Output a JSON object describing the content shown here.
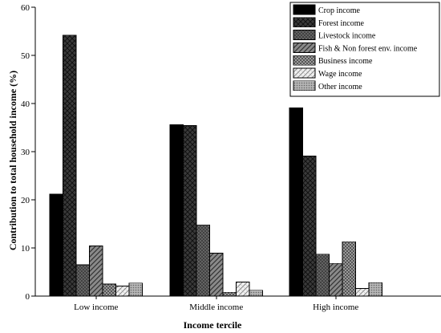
{
  "chart_data": {
    "type": "bar",
    "title": "",
    "xlabel": "Income tercile",
    "ylabel": "Contribution to total household income (%)",
    "ylim": [
      0,
      60
    ],
    "yticks": [
      0,
      10,
      20,
      30,
      40,
      50,
      60
    ],
    "categories": [
      "Low income",
      "Middle income",
      "High income"
    ],
    "legend_position": "top-right",
    "grid": false,
    "series": [
      {
        "name": "Crop income",
        "values": [
          21.2,
          35.6,
          39.1
        ],
        "pattern": "solid-black"
      },
      {
        "name": "Forest income",
        "values": [
          54.2,
          35.4,
          29.1
        ],
        "pattern": "crosshatch-dark"
      },
      {
        "name": "Livestock income",
        "values": [
          6.5,
          14.8,
          8.7
        ],
        "pattern": "dense-grid-gray"
      },
      {
        "name": "Fish & Non forest env. income",
        "values": [
          10.4,
          8.9,
          6.8
        ],
        "pattern": "diagonal-gray"
      },
      {
        "name": "Business income",
        "values": [
          2.5,
          0.8,
          11.3
        ],
        "pattern": "checker-gray"
      },
      {
        "name": "Wage income",
        "values": [
          2.1,
          2.9,
          1.6
        ],
        "pattern": "light-diagonal"
      },
      {
        "name": "Other income",
        "values": [
          2.7,
          1.2,
          2.8
        ],
        "pattern": "dotted-gray"
      }
    ]
  }
}
